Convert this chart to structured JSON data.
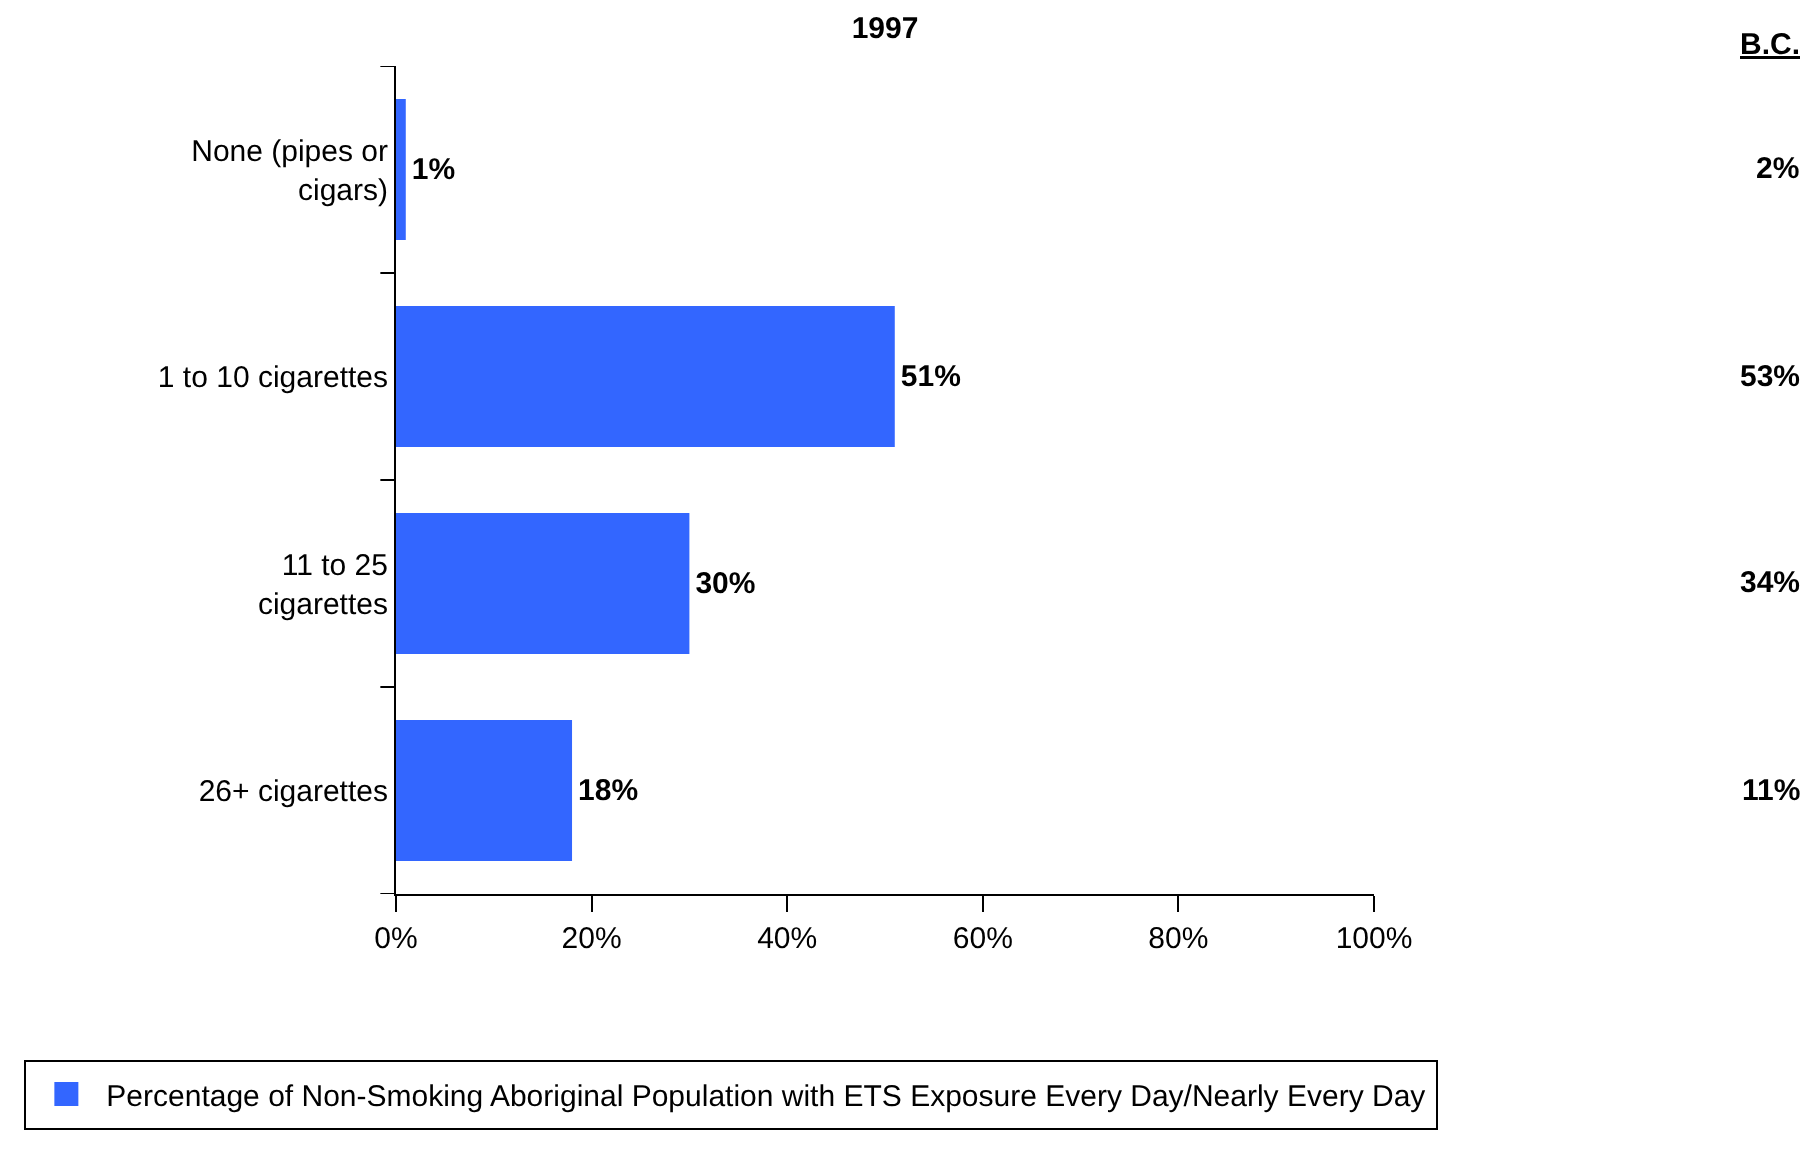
{
  "chart_data": {
    "type": "bar",
    "orientation": "horizontal",
    "title": "1997",
    "categories": [
      "None (pipes or cigars)",
      "1 to 10 cigarettes",
      "11 to 25 cigarettes",
      "26+ cigarettes"
    ],
    "series": [
      {
        "name": "Percentage of Non-Smoking Aboriginal Population with ETS Exposure Every Day/Nearly Every Day",
        "color": "#3366ff",
        "values": [
          1,
          51,
          30,
          18
        ],
        "value_labels": [
          "1%",
          "51%",
          "30%",
          "18%"
        ]
      }
    ],
    "xlim": [
      0,
      100
    ],
    "xticks": [
      {
        "value": 0,
        "label": "0%"
      },
      {
        "value": 20,
        "label": "20%"
      },
      {
        "value": 40,
        "label": "40%"
      },
      {
        "value": 60,
        "label": "60%"
      },
      {
        "value": 80,
        "label": "80%"
      },
      {
        "value": 100,
        "label": "100%"
      }
    ],
    "grid": false,
    "legend": "bottom left",
    "annotations": [
      "B.C.",
      "2%",
      "53%",
      "34%",
      "11%"
    ]
  }
}
